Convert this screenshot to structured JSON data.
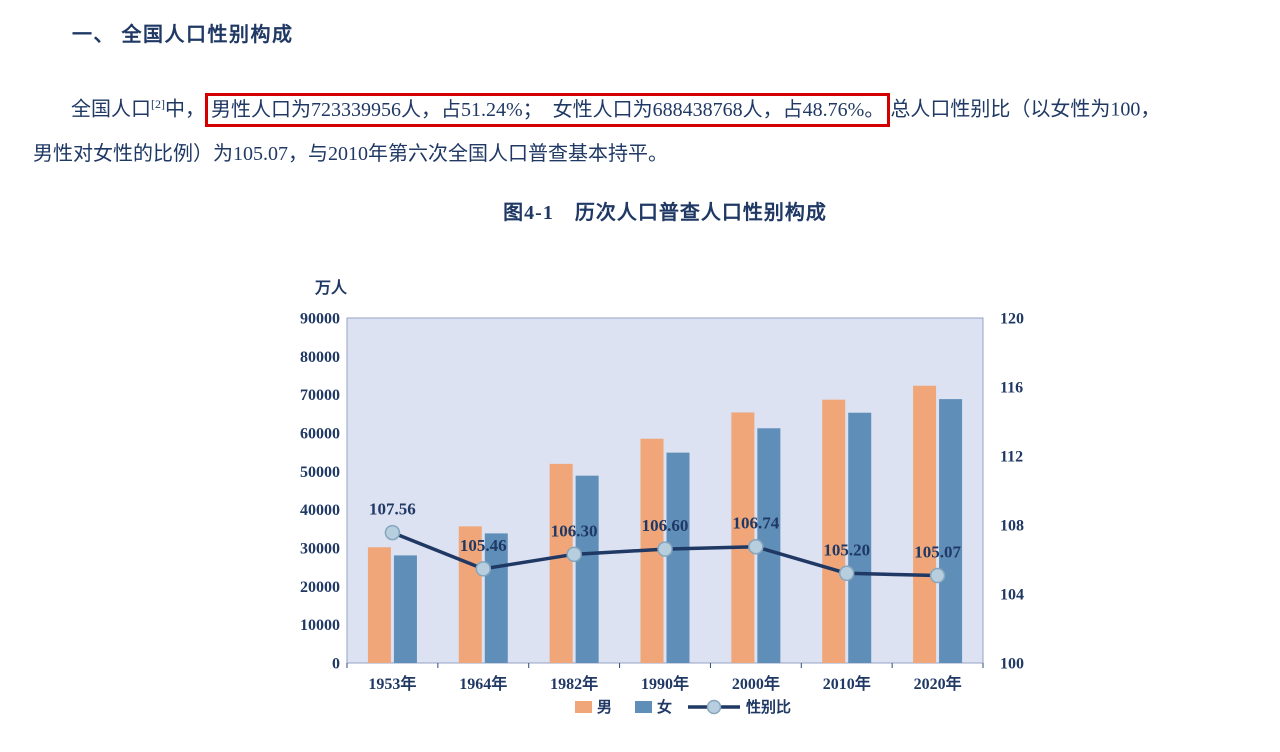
{
  "page": {
    "heading": "一、 全国人口性别构成",
    "figure_title": "图4-1　历次人口普查人口性别构成"
  },
  "paragraph": {
    "prefix": "全国人口",
    "footnote": "[2]",
    "mid": "中，",
    "highlight": "男性人口为723339956人，占51.24%；　女性人口为688438768人，占48.76%。",
    "suffix_line1": "总人口性别比（以女性为100，",
    "suffix_line2": "男性对女性的比例）为105.07，与2010年第六次全国人口普查基本持平。"
  },
  "colors": {
    "text_navy": "#1f3864",
    "highlight_border": "#d40000",
    "plot_bg": "#dce2f1",
    "plot_border": "#95a3c4",
    "axis": "#2f4a7d",
    "marker_fill": "#b7cedf",
    "marker_stroke": "#86a6be"
  },
  "chart_data": {
    "type": "combo-bar-line",
    "title": "图4-1　历次人口普查人口性别构成",
    "unit_label": "万人",
    "categories": [
      "1953年",
      "1964年",
      "1982年",
      "1990年",
      "2000年",
      "2010年",
      "2020年"
    ],
    "series": [
      {
        "name": "男",
        "type": "bar",
        "axis": "left",
        "color": "#f0a678",
        "values": [
          30190,
          35650,
          51950,
          58500,
          65360,
          68690,
          72330
        ]
      },
      {
        "name": "女",
        "type": "bar",
        "axis": "left",
        "color": "#5f8fb9",
        "values": [
          28070,
          33810,
          48870,
          54880,
          61230,
          65290,
          68840
        ]
      },
      {
        "name": "性别比",
        "type": "line",
        "axis": "right",
        "color": "#1f3864",
        "values": [
          107.56,
          105.46,
          106.3,
          106.6,
          106.74,
          105.2,
          105.07
        ]
      }
    ],
    "left_axis": {
      "min": 0,
      "max": 90000,
      "step": 10000,
      "label": "万人"
    },
    "right_axis": {
      "min": 100,
      "max": 120,
      "step": 4
    },
    "grid": false,
    "legend_position": "bottom"
  }
}
